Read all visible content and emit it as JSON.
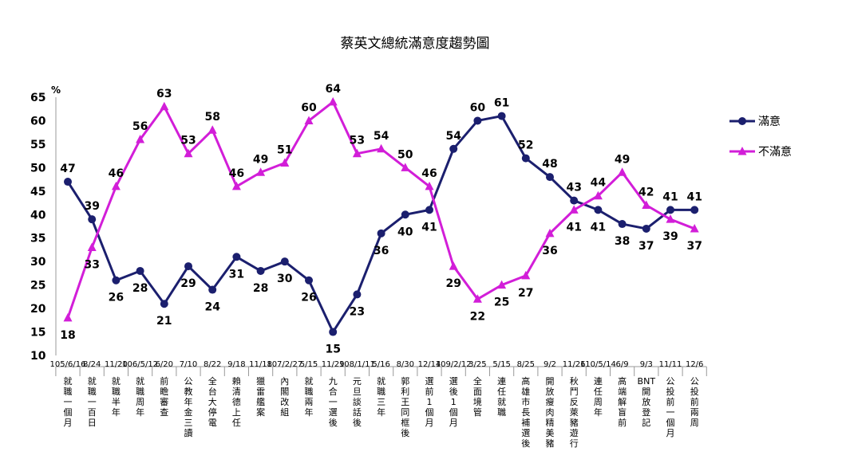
{
  "chart_data": {
    "type": "line",
    "title": "蔡英文總統滿意度趨勢圖",
    "ylabel": "%",
    "ylim": [
      10,
      65
    ],
    "yticks": [
      10,
      15,
      20,
      25,
      30,
      35,
      40,
      45,
      50,
      55,
      60,
      65
    ],
    "grid": false,
    "legend_position": "right",
    "x": [
      "105/6/16",
      "8/24",
      "11/20",
      "106/5/12",
      "6/20",
      "7/10",
      "8/22",
      "9/18",
      "11/18",
      "107/2/27",
      "5/15",
      "11/29",
      "108/1/11",
      "5/16",
      "8/30",
      "12/14",
      "109/2/12",
      "3/25",
      "5/15",
      "8/25",
      "9/2",
      "11/26",
      "110/5/14",
      "6/9",
      "9/3",
      "11/11",
      "12/6"
    ],
    "events": [
      "就職一個月",
      "就職一百日",
      "就職半年",
      "就職周年",
      "前瞻審查",
      "公教年金三讀",
      "全台大停電",
      "賴清德上任",
      "獵雷艦案",
      "內閣改組",
      "就職兩年",
      "九合一選後",
      "元旦談話後",
      "就職三年",
      "郭利王同框後",
      "選前1個月",
      "選後1個月",
      "全面境管",
      "連任就職",
      "高雄市長補選後",
      "開放瘦肉精美豬",
      "秋鬥反萊豬遊行",
      "連任周年",
      "高端解盲前",
      "BNT開放登記",
      "公投前一個月",
      "公投前兩周"
    ],
    "series": [
      {
        "name": "滿意",
        "color": "#1b1f6e",
        "marker": "circle",
        "values": [
          47,
          39,
          26,
          28,
          21,
          29,
          24,
          31,
          28,
          30,
          26,
          15,
          23,
          36,
          40,
          41,
          54,
          60,
          61,
          52,
          48,
          43,
          41,
          38,
          37,
          41,
          41
        ]
      },
      {
        "name": "不滿意",
        "color": "#d21ed8",
        "marker": "triangle",
        "values": [
          18,
          33,
          46,
          56,
          63,
          53,
          58,
          46,
          49,
          51,
          60,
          64,
          53,
          54,
          50,
          46,
          29,
          22,
          25,
          27,
          36,
          41,
          44,
          49,
          42,
          39,
          37
        ]
      }
    ]
  }
}
